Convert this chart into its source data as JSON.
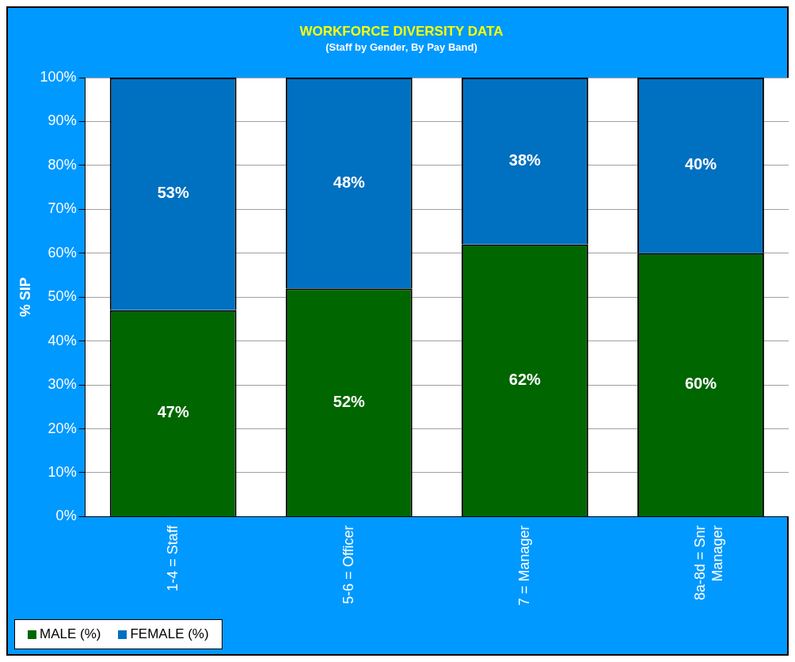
{
  "chart_data": {
    "type": "bar",
    "title": "WORKFORCE DIVERSITY DATA",
    "subtitle": "(Staff by Gender, By Pay Band)",
    "ylabel": "% SIP",
    "categories": [
      "1-4 = Staff",
      "5-6 = Officer",
      "7 = Manager",
      "8a-8d = Snr Manager"
    ],
    "stacked": true,
    "series": [
      {
        "name": "MALE (%)",
        "color": "#006600",
        "values": [
          47,
          52,
          62,
          60
        ],
        "value_labels": [
          "47%",
          "52%",
          "62%",
          "60%"
        ]
      },
      {
        "name": "FEMALE (%)",
        "color": "#0070c0",
        "values": [
          53,
          48,
          38,
          40
        ],
        "value_labels": [
          "53%",
          "48%",
          "38%",
          "40%"
        ]
      }
    ],
    "ylim": [
      0,
      100
    ],
    "yticks": [
      {
        "value": 0,
        "label": "0%"
      },
      {
        "value": 10,
        "label": "10%"
      },
      {
        "value": 20,
        "label": "20%"
      },
      {
        "value": 30,
        "label": "30%"
      },
      {
        "value": 40,
        "label": "40%"
      },
      {
        "value": 50,
        "label": "50%"
      },
      {
        "value": 60,
        "label": "60%"
      },
      {
        "value": 70,
        "label": "70%"
      },
      {
        "value": 80,
        "label": "80%"
      },
      {
        "value": 90,
        "label": "90%"
      },
      {
        "value": 100,
        "label": "100%"
      }
    ],
    "grid": "y",
    "legend": "bottom left"
  }
}
